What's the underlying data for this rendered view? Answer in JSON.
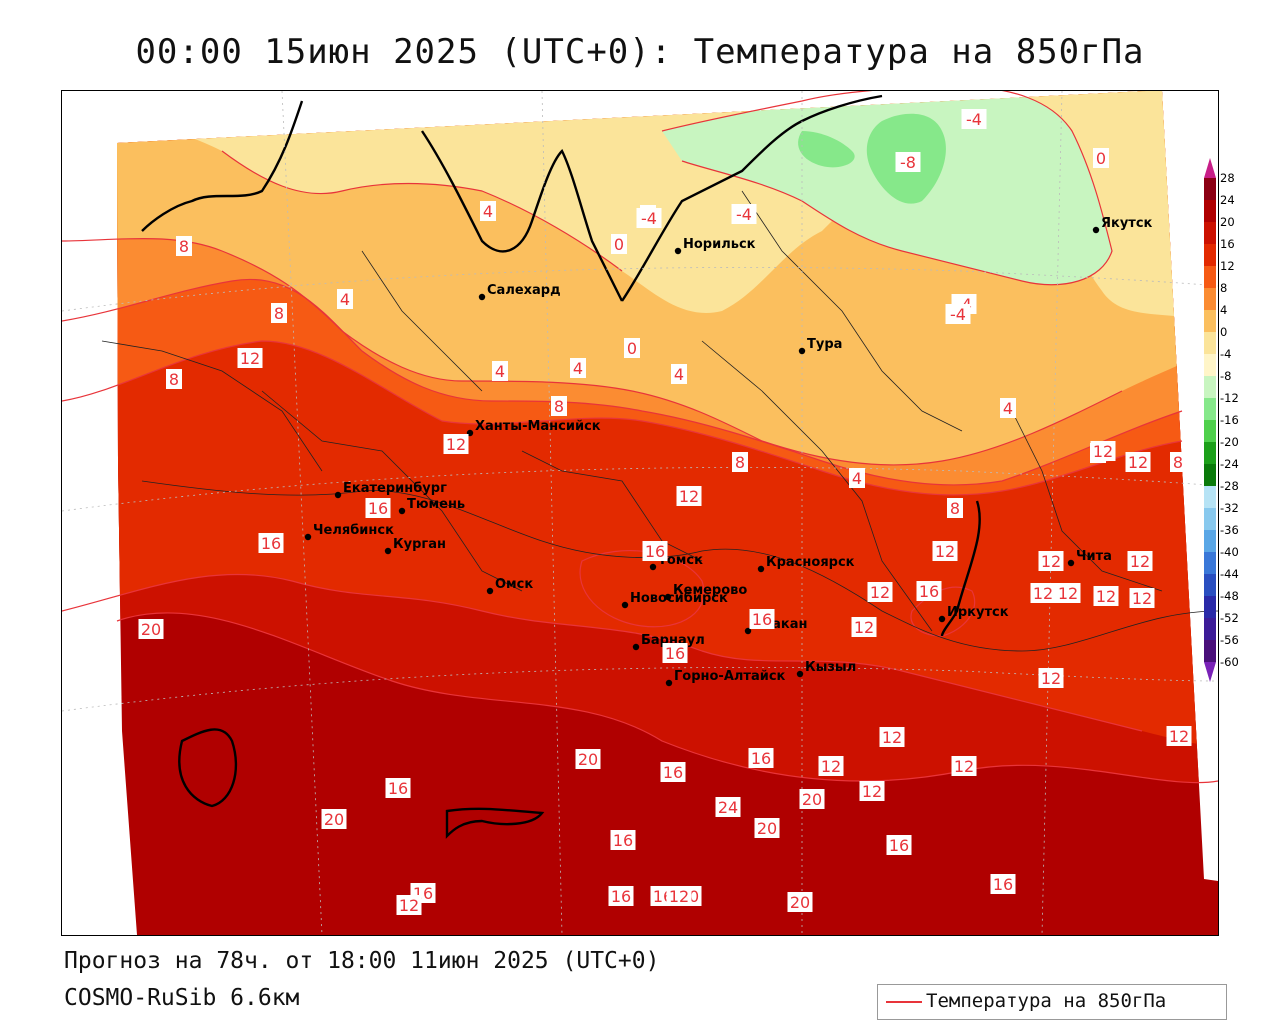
{
  "title": "00:00 15июн 2025 (UTC+0): Температура на 850гПа",
  "forecast_line": "Прогноз на 78ч. от 18:00 11июн 2025 (UTC+0)",
  "model_line": "COSMO-RuSib 6.6км",
  "legend_label": "Температура на 850гПа",
  "colors": {
    "contour_line": "#e8343a",
    "t24": "#b00000",
    "t20": "#cc1100",
    "t16": "#e32a00",
    "t12": "#f65a14",
    "t8": "#fb8c32",
    "t4": "#fbbf5e",
    "t0": "#fbe49a",
    "tm4": "#c8f5c0",
    "tm8": "#86e88a"
  },
  "colorbar": {
    "ticks": [
      "28",
      "24",
      "20",
      "16",
      "12",
      "8",
      "4",
      "0",
      "-4",
      "-8",
      "-12",
      "-16",
      "-20",
      "-24",
      "-28",
      "-32",
      "-36",
      "-40",
      "-44",
      "-48",
      "-52",
      "-56",
      "-60"
    ],
    "colors": [
      "#8c0014",
      "#b00000",
      "#cc1100",
      "#e32a00",
      "#f65a14",
      "#fb8c32",
      "#fbbf5e",
      "#fbe49a",
      "#fff5c8",
      "#c8f5c0",
      "#86e88a",
      "#4fd04c",
      "#1ca01a",
      "#0a7a0a",
      "#b6e3f5",
      "#88c9ee",
      "#5aa7e6",
      "#3a78d8",
      "#2a4fc0",
      "#2a2aa8",
      "#3c1c98",
      "#4a107a"
    ]
  },
  "cities": [
    {
      "name": "Якутск"
    },
    {
      "name": "Норильск"
    },
    {
      "name": "Салехард"
    },
    {
      "name": "Тура"
    },
    {
      "name": "Ханты-Мансийск"
    },
    {
      "name": "Екатеринбург"
    },
    {
      "name": "Тюмень"
    },
    {
      "name": "Челябинск"
    },
    {
      "name": "Курган"
    },
    {
      "name": "Омск"
    },
    {
      "name": "Новосибирск"
    },
    {
      "name": "Томск"
    },
    {
      "name": "Кемерово"
    },
    {
      "name": "Красноярск"
    },
    {
      "name": "Абакан"
    },
    {
      "name": "Барнаул"
    },
    {
      "name": "Горно-Алтайск"
    },
    {
      "name": "Кызыл"
    },
    {
      "name": "Иркутск"
    },
    {
      "name": "Чита"
    }
  ],
  "contour_labels": [
    "-4",
    "-8",
    "0",
    "-4",
    "-4",
    "4",
    "0",
    "8",
    "4",
    "8",
    "12",
    "4",
    "0",
    "4",
    "4",
    "8",
    "-4",
    "4",
    "12",
    "12",
    "16",
    "8",
    "8",
    "12",
    "8",
    "16",
    "16",
    "16",
    "12",
    "16",
    "20",
    "20",
    "16",
    "16",
    "20",
    "24",
    "20",
    "16",
    "16",
    "16",
    "20",
    "20",
    "16",
    "12",
    "12",
    "12",
    "12",
    "12",
    "12",
    "12",
    "12",
    "12",
    "12",
    "16",
    "20",
    "12",
    "16",
    "20",
    "12",
    "12",
    "16",
    "12",
    "16",
    "12",
    "4",
    "0",
    "-4",
    "4",
    "12",
    "12",
    "8"
  ]
}
